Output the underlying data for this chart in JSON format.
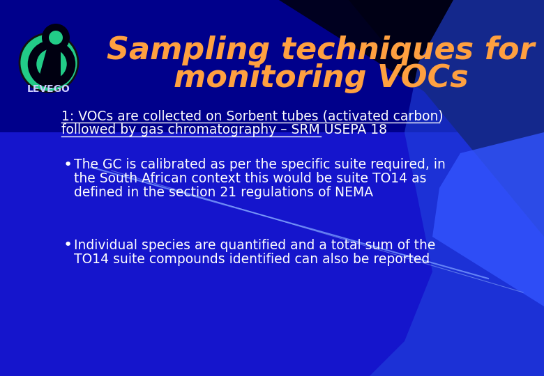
{
  "title_line1": "Sampling techniques for",
  "title_line2": "monitoring VOCs",
  "title_color": "#FFA040",
  "title_fontsize": 32,
  "bg_color": "#0000CC",
  "bg_color_dark": "#000033",
  "text_color": "#FFFFFF",
  "subtitle_line1": "1: VOCs are collected on Sorbent tubes (activated carbon)",
  "subtitle_line2": "followed by gas chromatography – SRM USEPA 18",
  "subtitle_fontsize": 13.5,
  "bullet1_line1": "The GC is calibrated as per the specific suite required, in",
  "bullet1_line2": "the South African context this would be suite TO14 as",
  "bullet1_line3": "defined in the section 21 regulations of NEMA",
  "bullet2_line1": "Individual species are quantified and a total sum of the",
  "bullet2_line2": "TO14 suite compounds identified can also be reported",
  "bullet_fontsize": 13.5,
  "logo_text": "LEVEGO",
  "logo_fontsize": 10
}
